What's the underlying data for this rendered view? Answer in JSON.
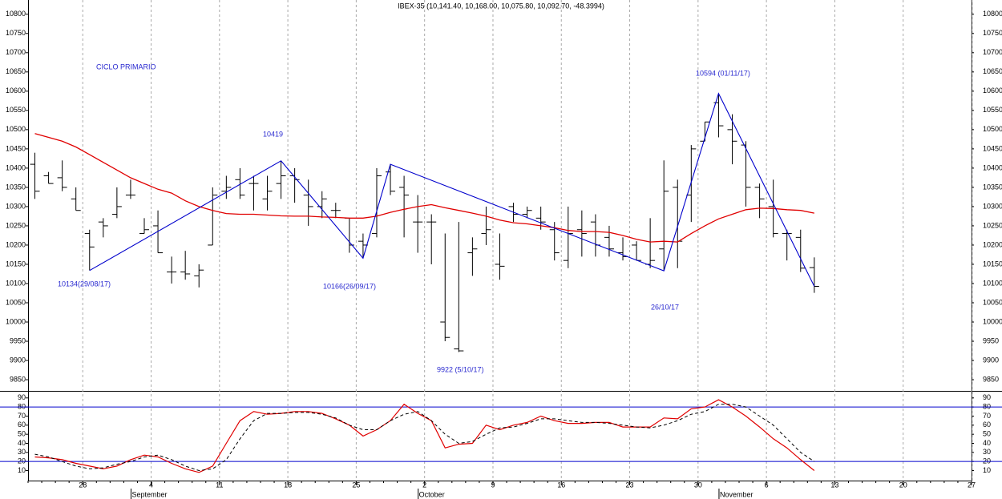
{
  "chart_data": [
    {
      "type": "ohlc",
      "title": "IBEX-35 (10,141.40, 10,168.00, 10,075.80, 10,092.70, -48.3994)",
      "categories": [
        null,
        null,
        null,
        null,
        "28",
        null,
        null,
        null,
        null,
        "4",
        null,
        null,
        null,
        null,
        "11",
        null,
        null,
        null,
        null,
        "18",
        null,
        null,
        null,
        null,
        "25",
        null,
        null,
        null,
        null,
        "2",
        null,
        null,
        null,
        null,
        "9",
        null,
        null,
        null,
        null,
        "16",
        null,
        null,
        null,
        null,
        "23",
        null,
        null,
        null,
        null,
        "30",
        null,
        null,
        null,
        null,
        "6",
        null,
        null,
        null,
        null,
        "13",
        null,
        null,
        null,
        null,
        "20",
        null,
        null,
        null,
        null,
        "27"
      ],
      "open": [
        10410,
        10380,
        10375,
        10320,
        10230,
        10260,
        10280,
        10330,
        10230,
        10250,
        10130,
        10130,
        10120,
        10200,
        10340,
        10370,
        10360,
        10320,
        10360,
        10380,
        10330,
        10300,
        10290,
        10270,
        10210,
        10230,
        10390,
        10350,
        10260,
        10260,
        10000,
        9930,
        10180,
        10230,
        10150,
        10300,
        10280,
        10270,
        10240,
        10160,
        10240,
        10260,
        10220,
        10180,
        10200,
        10150,
        10190,
        10350,
        10330,
        10470,
        10570,
        10500,
        10460,
        10350,
        10300,
        10230,
        10220,
        10141.4,
        null,
        null,
        null,
        null,
        null,
        null,
        null,
        null,
        null,
        null,
        null,
        null
      ],
      "high": [
        10440,
        10390,
        10420,
        10350,
        10240,
        10270,
        10350,
        10370,
        10270,
        10290,
        10170,
        10185,
        10150,
        10350,
        10380,
        10400,
        10380,
        10380,
        10419,
        10400,
        10370,
        10340,
        10310,
        10270,
        10230,
        10400,
        10410,
        10380,
        10330,
        10280,
        10230,
        10260,
        10220,
        10300,
        10230,
        10310,
        10300,
        10300,
        10260,
        10300,
        10290,
        10280,
        10250,
        10220,
        10210,
        10270,
        10420,
        10370,
        10460,
        10520,
        10594,
        10540,
        10470,
        10360,
        10370,
        10240,
        10240,
        10168,
        null,
        null,
        null,
        null,
        null,
        null,
        null,
        null,
        null,
        null,
        null,
        null
      ],
      "low": [
        10320,
        10360,
        10340,
        10290,
        10134,
        10220,
        10270,
        10320,
        10230,
        10180,
        10100,
        10110,
        10090,
        10200,
        10320,
        10320,
        10290,
        10290,
        10320,
        10310,
        10250,
        10270,
        10270,
        10180,
        10166,
        10220,
        10330,
        10220,
        10180,
        10150,
        9950,
        9922,
        10120,
        10200,
        10110,
        10260,
        10270,
        10240,
        10160,
        10140,
        10170,
        10170,
        10170,
        10160,
        10160,
        10140,
        10133,
        10140,
        10260,
        10470,
        10480,
        10410,
        10300,
        10270,
        10220,
        10160,
        10130,
        10075.8,
        null,
        null,
        null,
        null,
        null,
        null,
        null,
        null,
        null,
        null,
        null,
        null
      ],
      "close": [
        10340,
        10360,
        10350,
        10290,
        10195,
        10250,
        10300,
        10330,
        10240,
        10180,
        10130,
        10125,
        10135,
        10330,
        10350,
        10330,
        10360,
        10340,
        10380,
        10370,
        10300,
        10320,
        10290,
        10200,
        10200,
        10380,
        10340,
        10330,
        10260,
        10260,
        9960,
        9925,
        10190,
        10240,
        10145,
        10280,
        10290,
        10260,
        10180,
        10230,
        10230,
        10200,
        10190,
        10170,
        10160,
        10160,
        10340,
        10210,
        10450,
        10520,
        10510,
        10470,
        10350,
        10320,
        10230,
        10230,
        10140,
        10092.7,
        null,
        null,
        null,
        null,
        null,
        null,
        null,
        null,
        null,
        null,
        null,
        null
      ],
      "color": "#000000",
      "series": [
        {
          "color": "#e00000",
          "values": [
            10490,
            10480,
            10470,
            10455,
            10435,
            10415,
            10395,
            10375,
            10360,
            10345,
            10335,
            10315,
            10300,
            10290,
            10282,
            10280,
            10280,
            10278,
            10276,
            10275,
            10275,
            10273,
            10272,
            10270,
            10270,
            10275,
            10285,
            10293,
            10300,
            10305,
            10297,
            10290,
            10283,
            10275,
            10265,
            10258,
            10255,
            10250,
            10245,
            10238,
            10235,
            10235,
            10233,
            10225,
            10215,
            10208,
            10210,
            10208,
            10230,
            10250,
            10268,
            10280,
            10292,
            10296,
            10295,
            10292,
            10290,
            10283,
            null,
            null,
            null,
            null,
            null,
            null,
            null,
            null,
            null,
            null,
            null,
            null
          ]
        }
      ],
      "zigzag": {
        "color": "#0000cc",
        "x": [
          4,
          18,
          24,
          26,
          46,
          50,
          57
        ],
        "values": [
          10134,
          10419,
          10166,
          10410,
          10133,
          10594,
          10093
        ]
      },
      "annotations": [
        "CICLO PRIMARIO",
        "10419",
        "10134(29/08/17)",
        "10166(26/09/17)",
        "9922 (5/10/17)",
        "26/10/17",
        "10594 (01/11/17)"
      ],
      "ylim": [
        9821,
        10837
      ],
      "yticks": [
        9850,
        9900,
        9950,
        10000,
        10050,
        10100,
        10150,
        10200,
        10250,
        10300,
        10350,
        10400,
        10450,
        10500,
        10550,
        10600,
        10650,
        10700,
        10750,
        10800
      ],
      "grid": true
    },
    {
      "type": "line",
      "categories": [
        null,
        null,
        null,
        null,
        "28",
        null,
        null,
        null,
        null,
        "4",
        null,
        null,
        null,
        null,
        "11",
        null,
        null,
        null,
        null,
        "18",
        null,
        null,
        null,
        null,
        "25",
        null,
        null,
        null,
        null,
        "2",
        null,
        null,
        null,
        null,
        "9",
        null,
        null,
        null,
        null,
        "16",
        null,
        null,
        null,
        null,
        "23",
        null,
        null,
        null,
        null,
        "30",
        null,
        null,
        null,
        null,
        "6",
        null,
        null,
        null,
        null,
        "13",
        null,
        null,
        null,
        null,
        "20",
        null,
        null,
        null,
        null,
        "27"
      ],
      "months": [
        null,
        null,
        null,
        null,
        null,
        null,
        null,
        null,
        "September",
        null,
        null,
        null,
        null,
        null,
        null,
        null,
        null,
        null,
        null,
        null,
        null,
        null,
        null,
        null,
        null,
        null,
        null,
        null,
        null,
        "October",
        null,
        null,
        null,
        null,
        null,
        null,
        null,
        null,
        null,
        null,
        null,
        null,
        null,
        null,
        null,
        null,
        null,
        null,
        null,
        null,
        null,
        "November",
        null,
        null,
        null,
        null,
        null,
        null,
        null,
        null,
        null,
        null,
        null,
        null,
        null,
        null,
        null,
        null,
        null,
        null
      ],
      "series": [
        {
          "color": "#e00000",
          "values": [
            25,
            24,
            22,
            18,
            15,
            12,
            15,
            22,
            27,
            25,
            18,
            12,
            8,
            15,
            40,
            65,
            75,
            72,
            73,
            75,
            75,
            73,
            67,
            60,
            48,
            55,
            65,
            83,
            73,
            65,
            35,
            39,
            40,
            60,
            55,
            60,
            63,
            70,
            65,
            62,
            62,
            63,
            63,
            58,
            58,
            58,
            68,
            67,
            78,
            80,
            88,
            80,
            70,
            58,
            45,
            35,
            22,
            10,
            null,
            null,
            null,
            null,
            null,
            null,
            null,
            null,
            null,
            null,
            null,
            null
          ]
        },
        {
          "color": "#000000",
          "dash": true,
          "values": [
            28,
            25,
            20,
            15,
            12,
            13,
            17,
            20,
            25,
            27,
            22,
            15,
            10,
            12,
            22,
            45,
            65,
            73,
            73,
            74,
            74,
            72,
            68,
            60,
            55,
            55,
            65,
            72,
            75,
            65,
            50,
            40,
            42,
            50,
            57,
            58,
            62,
            67,
            67,
            65,
            63,
            63,
            62,
            60,
            58,
            57,
            60,
            65,
            72,
            75,
            83,
            83,
            80,
            70,
            60,
            45,
            30,
            20,
            null,
            null,
            null,
            null,
            null,
            null,
            null,
            null,
            null,
            null,
            null,
            null
          ]
        }
      ],
      "levels": [
        80,
        20
      ],
      "level_color": "#0000cc",
      "ylim": [
        -1,
        96
      ],
      "yticks": [
        10,
        20,
        30,
        40,
        50,
        60,
        70,
        80,
        90
      ]
    }
  ]
}
